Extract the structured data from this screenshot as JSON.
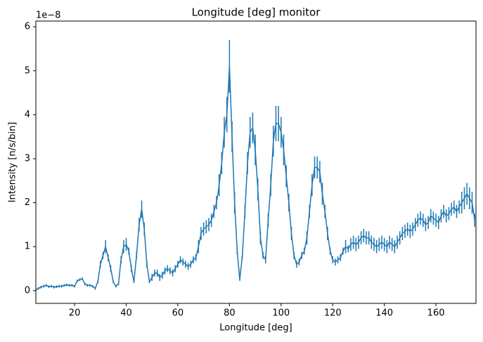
{
  "chart_data": {
    "type": "errorbar",
    "title": "Longitude [deg] monitor",
    "x_label": "Longitude [deg]",
    "y_label": "Intensity [n/s/bin]",
    "y_offset_text": "1e−8",
    "xlim": [
      5,
      175.5
    ],
    "ylim": [
      -0.29,
      6.13
    ],
    "xticks": [
      20,
      40,
      60,
      80,
      100,
      120,
      140,
      160
    ],
    "yticks": [
      0,
      1,
      2,
      3,
      4,
      5,
      6
    ],
    "series": [
      {
        "color": "#1f77b4",
        "x": [
          5,
          6,
          7,
          8,
          9,
          10,
          11,
          12,
          13,
          14,
          15,
          16,
          17,
          18,
          19,
          20,
          21,
          22,
          23,
          24,
          25,
          26,
          27,
          28,
          29,
          30,
          31,
          32,
          33,
          34,
          35,
          36,
          37,
          38,
          39,
          40,
          41,
          42,
          43,
          44,
          45,
          46,
          47,
          48,
          49,
          50,
          51,
          52,
          53,
          54,
          55,
          56,
          57,
          58,
          59,
          60,
          61,
          62,
          63,
          64,
          65,
          66,
          67,
          68,
          69,
          70,
          71,
          72,
          73,
          74,
          75,
          76,
          77,
          78,
          79,
          80,
          81,
          82,
          83,
          84,
          85,
          86,
          87,
          88,
          89,
          90,
          91,
          92,
          93,
          94,
          95,
          96,
          97,
          98,
          99,
          100,
          101,
          102,
          103,
          104,
          105,
          106,
          107,
          108,
          109,
          110,
          111,
          112,
          113,
          114,
          115,
          116,
          117,
          118,
          119,
          120,
          121,
          122,
          123,
          124,
          125,
          126,
          127,
          128,
          129,
          130,
          131,
          132,
          133,
          134,
          135,
          136,
          137,
          138,
          139,
          140,
          141,
          142,
          143,
          144,
          145,
          146,
          147,
          148,
          149,
          150,
          151,
          152,
          153,
          154,
          155,
          156,
          157,
          158,
          159,
          160,
          161,
          162,
          163,
          164,
          165,
          166,
          167,
          168,
          169,
          170,
          171,
          172,
          173,
          174,
          175
        ],
        "values": [
          0.02,
          0.05,
          0.08,
          0.1,
          0.12,
          0.09,
          0.1,
          0.08,
          0.09,
          0.1,
          0.1,
          0.12,
          0.13,
          0.12,
          0.12,
          0.1,
          0.22,
          0.25,
          0.27,
          0.15,
          0.12,
          0.12,
          0.1,
          0.05,
          0.2,
          0.6,
          0.8,
          1.0,
          0.75,
          0.5,
          0.2,
          0.1,
          0.15,
          0.7,
          1.0,
          1.05,
          0.9,
          0.5,
          0.2,
          0.8,
          1.5,
          1.85,
          1.4,
          0.6,
          0.2,
          0.3,
          0.4,
          0.4,
          0.3,
          0.35,
          0.45,
          0.5,
          0.45,
          0.4,
          0.5,
          0.6,
          0.7,
          0.65,
          0.6,
          0.55,
          0.6,
          0.7,
          0.75,
          1.0,
          1.3,
          1.4,
          1.45,
          1.5,
          1.6,
          1.8,
          2.0,
          2.4,
          2.9,
          3.6,
          4.0,
          5.1,
          3.5,
          2.0,
          0.9,
          0.25,
          0.8,
          1.8,
          2.9,
          3.6,
          3.7,
          3.2,
          2.3,
          1.2,
          0.8,
          0.7,
          1.6,
          2.4,
          3.4,
          3.8,
          3.8,
          3.6,
          3.2,
          2.6,
          2.0,
          1.3,
          0.8,
          0.6,
          0.65,
          0.8,
          0.9,
          1.2,
          1.8,
          2.4,
          2.8,
          2.8,
          2.7,
          2.2,
          1.8,
          1.3,
          0.9,
          0.7,
          0.65,
          0.7,
          0.75,
          0.9,
          1.0,
          0.95,
          1.05,
          1.1,
          1.05,
          1.1,
          1.2,
          1.25,
          1.2,
          1.2,
          1.1,
          1.05,
          1.0,
          1.05,
          1.1,
          1.05,
          1.0,
          1.1,
          1.05,
          1.0,
          1.1,
          1.2,
          1.3,
          1.35,
          1.4,
          1.35,
          1.4,
          1.5,
          1.6,
          1.65,
          1.6,
          1.5,
          1.55,
          1.7,
          1.65,
          1.6,
          1.55,
          1.7,
          1.8,
          1.7,
          1.75,
          1.85,
          1.9,
          1.8,
          1.9,
          2.0,
          2.1,
          2.2,
          2.1,
          2.0,
          1.6
        ],
        "errors": [
          0.03,
          0.03,
          0.03,
          0.03,
          0.03,
          0.03,
          0.03,
          0.03,
          0.03,
          0.03,
          0.03,
          0.03,
          0.03,
          0.03,
          0.03,
          0.03,
          0.03,
          0.03,
          0.03,
          0.03,
          0.03,
          0.03,
          0.03,
          0.03,
          0.03,
          0.08,
          0.08,
          0.15,
          0.08,
          0.08,
          0.03,
          0.03,
          0.03,
          0.08,
          0.15,
          0.15,
          0.08,
          0.08,
          0.03,
          0.08,
          0.15,
          0.2,
          0.15,
          0.08,
          0.03,
          0.08,
          0.08,
          0.08,
          0.08,
          0.08,
          0.08,
          0.08,
          0.08,
          0.08,
          0.08,
          0.08,
          0.08,
          0.08,
          0.08,
          0.08,
          0.08,
          0.08,
          0.08,
          0.15,
          0.15,
          0.15,
          0.15,
          0.15,
          0.15,
          0.15,
          0.15,
          0.25,
          0.25,
          0.35,
          0.4,
          0.6,
          0.35,
          0.25,
          0.08,
          0.03,
          0.08,
          0.15,
          0.25,
          0.35,
          0.35,
          0.35,
          0.25,
          0.15,
          0.08,
          0.08,
          0.15,
          0.25,
          0.35,
          0.4,
          0.4,
          0.35,
          0.35,
          0.25,
          0.2,
          0.15,
          0.08,
          0.08,
          0.08,
          0.08,
          0.08,
          0.15,
          0.15,
          0.25,
          0.25,
          0.25,
          0.25,
          0.25,
          0.15,
          0.15,
          0.08,
          0.08,
          0.08,
          0.08,
          0.08,
          0.08,
          0.15,
          0.08,
          0.15,
          0.15,
          0.15,
          0.15,
          0.15,
          0.15,
          0.15,
          0.15,
          0.15,
          0.15,
          0.15,
          0.15,
          0.15,
          0.15,
          0.15,
          0.15,
          0.15,
          0.15,
          0.15,
          0.15,
          0.15,
          0.15,
          0.15,
          0.15,
          0.15,
          0.15,
          0.15,
          0.15,
          0.15,
          0.15,
          0.15,
          0.15,
          0.15,
          0.15,
          0.15,
          0.15,
          0.15,
          0.15,
          0.15,
          0.15,
          0.15,
          0.15,
          0.15,
          0.25,
          0.25,
          0.25,
          0.25,
          0.25,
          0.15
        ]
      }
    ]
  }
}
